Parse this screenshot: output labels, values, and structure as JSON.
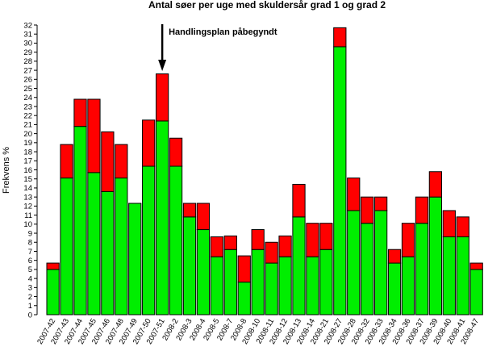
{
  "chart_data": {
    "type": "bar",
    "stacked": true,
    "title": "Antal søer per uge med skuldersår grad 1 og grad 2",
    "ylabel": "Frekvens %",
    "xlabel": "",
    "ylim": [
      0,
      32
    ],
    "yticks": [
      0,
      1,
      2,
      3,
      4,
      5,
      6,
      7,
      8,
      9,
      10,
      11,
      12,
      13,
      14,
      15,
      16,
      17,
      18,
      19,
      20,
      21,
      22,
      23,
      24,
      25,
      26,
      27,
      28,
      29,
      30,
      31,
      32
    ],
    "grid": false,
    "categories": [
      "2007-42",
      "2007-43",
      "2007-44",
      "2007-45",
      "2007-46",
      "2007-48",
      "2007-49",
      "2007-50",
      "2007-51",
      "2008-2",
      "2008-3",
      "2008-4",
      "2008-5",
      "2008-7",
      "2008-8",
      "2008-10",
      "2008-11",
      "2008-12",
      "2008-13",
      "2008-14",
      "2008-21",
      "2008-27",
      "2008-28",
      "2008-32",
      "2008-33",
      "2008-34",
      "2008-36",
      "2008-37",
      "2008-39",
      "2008-40",
      "2008-41",
      "2008-47"
    ],
    "series": [
      {
        "color": "#00ee00",
        "values": [
          5.0,
          15.1,
          20.8,
          15.7,
          13.6,
          15.1,
          12.3,
          16.4,
          21.4,
          16.4,
          10.8,
          9.4,
          6.4,
          7.2,
          3.6,
          7.2,
          5.7,
          6.4,
          10.8,
          6.4,
          7.2,
          29.6,
          11.5,
          10.1,
          11.5,
          5.7,
          6.4,
          10.1,
          13.0,
          8.6,
          8.6,
          5.0
        ]
      },
      {
        "color": "#ff0000",
        "values": [
          0.7,
          3.7,
          3.0,
          8.1,
          6.6,
          3.7,
          0.0,
          5.1,
          5.2,
          3.1,
          1.5,
          2.9,
          2.2,
          1.5,
          2.9,
          2.2,
          2.3,
          2.3,
          3.6,
          3.7,
          2.9,
          2.1,
          3.6,
          2.9,
          1.5,
          1.5,
          3.7,
          2.9,
          2.8,
          2.9,
          2.2,
          0.7
        ]
      }
    ],
    "annotation": {
      "text": "Handlingsplan påbegyndt",
      "category": "2007-51"
    }
  }
}
